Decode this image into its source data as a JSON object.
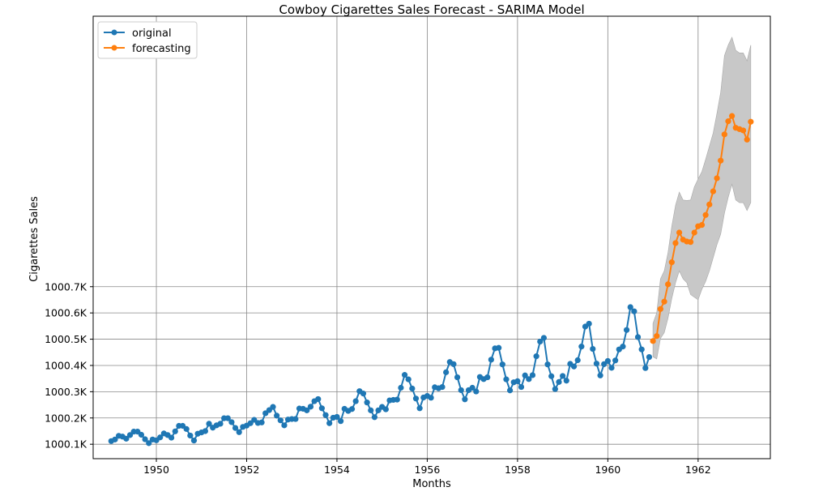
{
  "chart_data": {
    "type": "line",
    "title": "Cowboy Cigarettes Sales Forecast - SARIMA Model",
    "xlabel": "Months",
    "ylabel": "Cigarettes Sales",
    "xlim": [
      1948.6,
      1963.6
    ],
    "ylim": [
      1000045,
      1001730
    ],
    "x_ticks": [
      1950,
      1952,
      1954,
      1956,
      1958,
      1960,
      1962
    ],
    "x_tick_labels": [
      "1950",
      "1952",
      "1954",
      "1956",
      "1958",
      "1960",
      "1962"
    ],
    "y_ticks": [
      1000100,
      1000200,
      1000300,
      1000400,
      1000500,
      1000600,
      1000700
    ],
    "y_tick_labels": [
      "1000.1K",
      "1000.2K",
      "1000.3K",
      "1000.4K",
      "1000.5K",
      "1000.6K",
      "1000.7K"
    ],
    "grid": true,
    "legend_position": "top-left",
    "colors": {
      "original": "#1f77b4",
      "forecasting": "#ff7f0e",
      "band": "#c8c8c8"
    },
    "series": [
      {
        "name": "original",
        "x_start": 1949.0,
        "x_step": 0.0833333,
        "values": [
          1000112,
          1000118,
          1000132,
          1000129,
          1000121,
          1000135,
          1000148,
          1000148,
          1000136,
          1000119,
          1000104,
          1000118,
          1000115,
          1000126,
          1000141,
          1000135,
          1000125,
          1000149,
          1000170,
          1000170,
          1000158,
          1000133,
          1000114,
          1000140,
          1000145,
          1000150,
          1000178,
          1000163,
          1000172,
          1000178,
          1000199,
          1000199,
          1000184,
          1000162,
          1000146,
          1000166,
          1000171,
          1000180,
          1000193,
          1000181,
          1000183,
          1000218,
          1000230,
          1000242,
          1000209,
          1000191,
          1000172,
          1000194,
          1000196,
          1000196,
          1000236,
          1000235,
          1000229,
          1000243,
          1000264,
          1000272,
          1000237,
          1000211,
          1000180,
          1000201,
          1000204,
          1000188,
          1000235,
          1000227,
          1000234,
          1000264,
          1000302,
          1000293,
          1000259,
          1000229,
          1000203,
          1000229,
          1000242,
          1000233,
          1000267,
          1000269,
          1000270,
          1000315,
          1000364,
          1000347,
          1000312,
          1000274,
          1000237,
          1000278,
          1000284,
          1000277,
          1000317,
          1000313,
          1000318,
          1000374,
          1000413,
          1000405,
          1000355,
          1000306,
          1000271,
          1000306,
          1000315,
          1000301,
          1000356,
          1000348,
          1000355,
          1000422,
          1000465,
          1000467,
          1000404,
          1000347,
          1000305,
          1000336,
          1000340,
          1000318,
          1000362,
          1000348,
          1000363,
          1000435,
          1000491,
          1000505,
          1000404,
          1000359,
          1000310,
          1000337,
          1000360,
          1000342,
          1000406,
          1000396,
          1000420,
          1000472,
          1000548,
          1000559,
          1000463,
          1000407,
          1000362,
          1000405,
          1000417,
          1000391,
          1000419,
          1000461,
          1000472,
          1000535,
          1000622,
          1000606,
          1000508,
          1000461,
          1000390,
          1000432
        ]
      },
      {
        "name": "forecasting",
        "x_start": 1961.0,
        "x_step": 0.0833333,
        "values": [
          1000493,
          1000512,
          1000615,
          1000643,
          1000709,
          1000793,
          1000866,
          1000906,
          1000879,
          1000872,
          1000870,
          1000906,
          1000930,
          1000935,
          1000973,
          1001013,
          1001063,
          1001113,
          1001180,
          1001280,
          1001330,
          1001350,
          1001305,
          1001300,
          1001295,
          1001260,
          1001328
        ],
        "lower": [
          1000433,
          1000425,
          1000503,
          1000525,
          1000580,
          1000655,
          1000715,
          1000760,
          1000730,
          1000715,
          1000670,
          1000660,
          1000650,
          1000690,
          1000720,
          1000760,
          1000810,
          1000860,
          1000900,
          1000980,
          1001040,
          1001090,
          1001030,
          1001020,
          1001020,
          1000990,
          1001020
        ],
        "upper": [
          1000560,
          1000600,
          1000730,
          1000760,
          1000830,
          1000930,
          1001010,
          1001060,
          1001030,
          1001028,
          1001030,
          1001080,
          1001110,
          1001138,
          1001185,
          1001235,
          1001285,
          1001360,
          1001440,
          1001580,
          1001620,
          1001650,
          1001600,
          1001590,
          1001590,
          1001560,
          1001620
        ]
      }
    ]
  }
}
